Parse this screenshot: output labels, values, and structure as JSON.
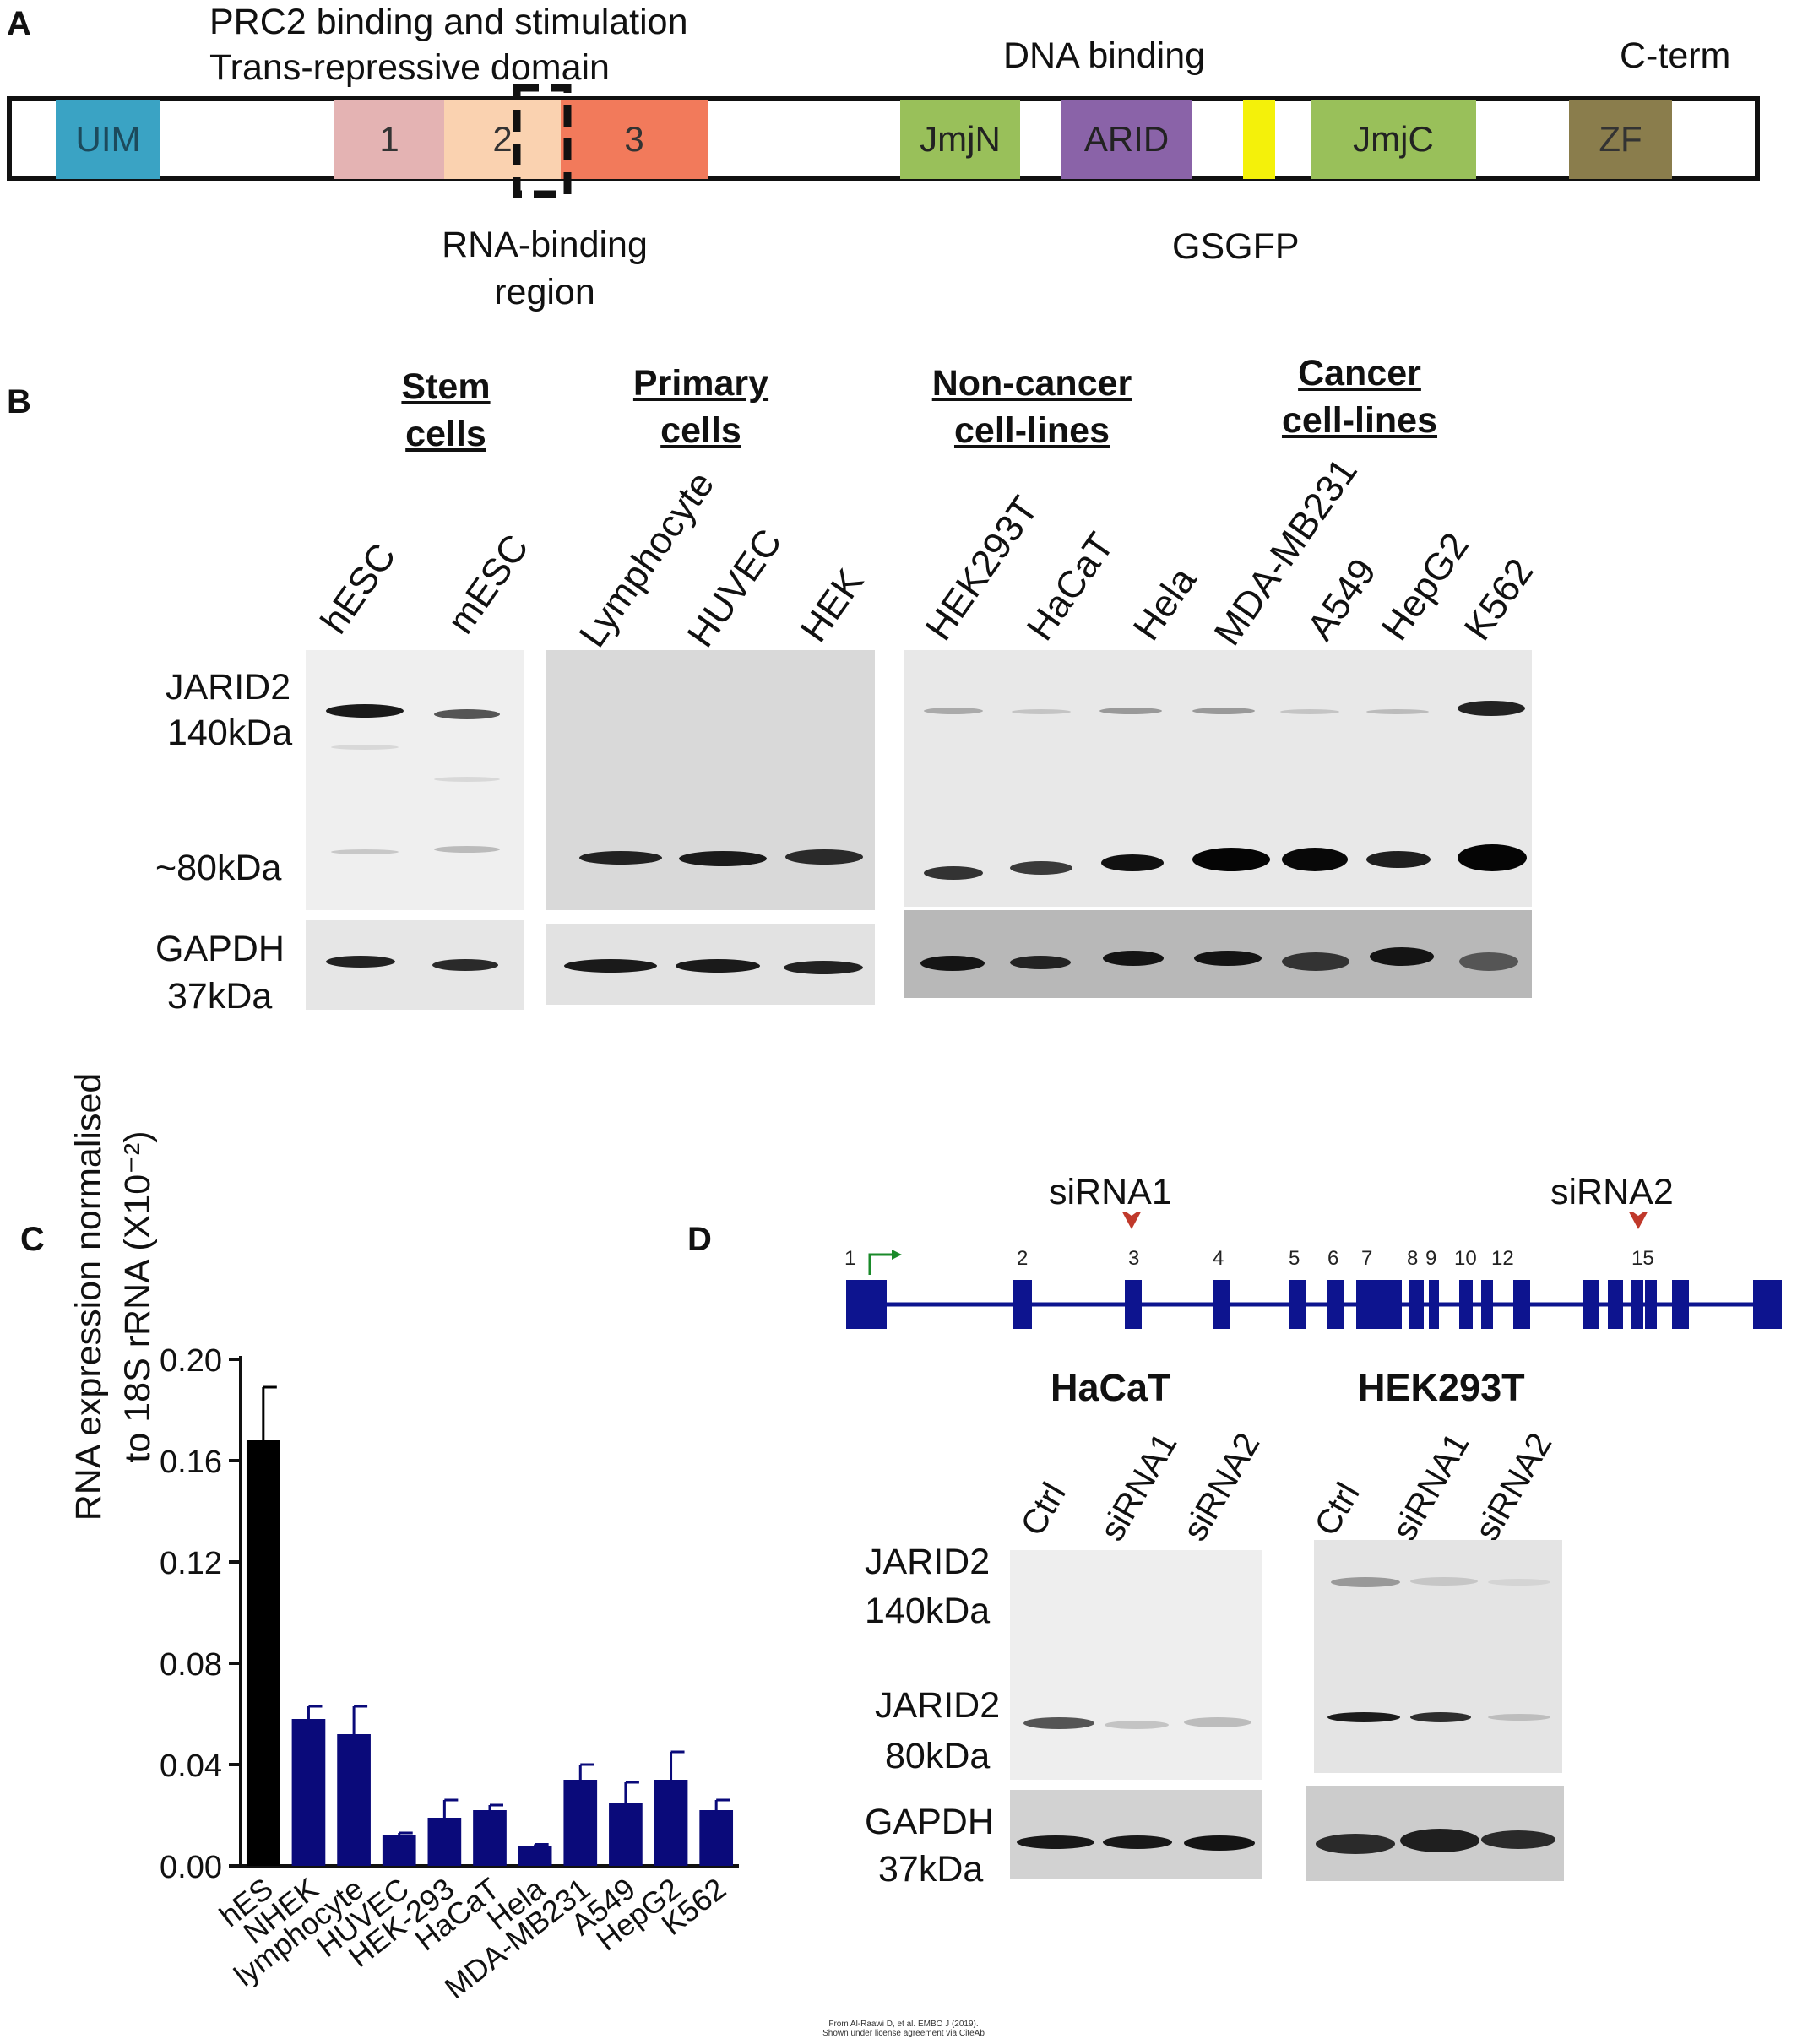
{
  "panels": {
    "a": "A",
    "b": "B",
    "c": "C",
    "d": "D"
  },
  "panel_a": {
    "top_label_line1": "PRC2 binding and stimulation",
    "top_label_line2": "Trans-repressive domain",
    "dna_binding": "DNA binding",
    "cterm": "C-term",
    "rna_binding_line1": "RNA-binding",
    "rna_binding_line2": "region",
    "gsgfp": "GSGFP",
    "domains": [
      {
        "label": "UIM",
        "color": "#3aa3c4"
      },
      {
        "label": "1",
        "color": "#e4b3b3"
      },
      {
        "label": "2",
        "color": "#fad2b0"
      },
      {
        "label": "3",
        "color": "#f27a5b"
      },
      {
        "label": "JmjN",
        "color": "#99c05a"
      },
      {
        "label": "ARID",
        "color": "#8a63a8"
      },
      {
        "label": "",
        "color": "#f4f10a"
      },
      {
        "label": "JmjC",
        "color": "#99c05a"
      },
      {
        "label": "ZF",
        "color": "#8a7d4c"
      }
    ]
  },
  "panel_b": {
    "groups": [
      {
        "line1": "Stem",
        "line2": "cells"
      },
      {
        "line1": "Primary",
        "line2": "cells"
      },
      {
        "line1": "Non-cancer",
        "line2": "cell-lines"
      },
      {
        "line1": "Cancer",
        "line2": "cell-lines"
      }
    ],
    "lanes": [
      "hESC",
      "mESC",
      "Lymphocyte",
      "HUVEC",
      "HEK",
      "HEK293T",
      "HaCaT",
      "Hela",
      "MDA-MB231",
      "A549",
      "HepG2",
      "K562"
    ],
    "row_labels": {
      "jarid2_line1": "JARID2",
      "jarid2_line2": "140kDa",
      "kda80": "~80kDa",
      "gapdh_line1": "GAPDH",
      "gapdh_line2": "37kDa"
    }
  },
  "panel_c": {
    "chart_data": {
      "type": "bar",
      "ylabel_line1": "RNA expression normalised",
      "ylabel_line2": "to 18S rRNA (X10⁻²)",
      "ylim": [
        0,
        0.2
      ],
      "yticks": [
        "0.00",
        "0.04",
        "0.08",
        "0.12",
        "0.16",
        "0.20"
      ],
      "categories": [
        "hES",
        "NHEK",
        "lymphocyte",
        "HUVEC",
        "HEK-293",
        "HaCaT",
        "Hela",
        "MDA-MB231",
        "A549",
        "HepG2",
        "K562"
      ],
      "values": [
        0.168,
        0.058,
        0.052,
        0.012,
        0.019,
        0.022,
        0.008,
        0.034,
        0.025,
        0.034,
        0.022
      ],
      "errors": [
        0.021,
        0.005,
        0.011,
        0.001,
        0.007,
        0.002,
        0.0005,
        0.006,
        0.008,
        0.011,
        0.004
      ],
      "colors": [
        "#000000",
        "#0a0a7a",
        "#0a0a7a",
        "#0a0a7a",
        "#0a0a7a",
        "#0a0a7a",
        "#0a0a7a",
        "#0a0a7a",
        "#0a0a7a",
        "#0a0a7a",
        "#0a0a7a"
      ],
      "grid": false
    }
  },
  "panel_d": {
    "sirna1": "siRNA1",
    "sirna2": "siRNA2",
    "exon_numbers": [
      "1",
      "2",
      "3",
      "4",
      "5",
      "6",
      "7",
      "8",
      "9",
      "10",
      "12",
      "15"
    ],
    "blot_left_title": "HaCaT",
    "blot_right_title": "HEK293T",
    "lanes": [
      "Ctrl",
      "siRNA1",
      "siRNA2"
    ],
    "row_labels": {
      "jarid2_line1": "JARID2",
      "kda140": "140kDa",
      "jarid2_80_line1": "JARID2",
      "kda80": "80kDa",
      "gapdh_line1": "GAPDH",
      "gapdh_line2": "37kDa"
    }
  },
  "credit_line1": "From Al-Raawi D, et al. EMBO J (2019).",
  "credit_line2": "Shown under license agreement via CiteAb",
  "colors": {
    "bar_blue": "#0a0a7a",
    "gene_blue": "#0d148f",
    "arrow_red": "#c0392b",
    "arrow_green": "#1a8a2a"
  }
}
